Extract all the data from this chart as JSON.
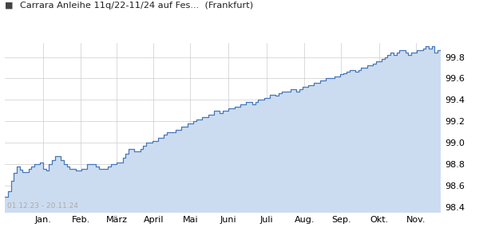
{
  "title": "Carrara Anleihe 11q/22-11/24 auf Fes...  (Frankfurt)",
  "title_square_color": "#333333",
  "date_range": "01.12.23 - 20.11.24",
  "x_labels": [
    "Jan.",
    "Feb.",
    "März",
    "April",
    "Mai",
    "Juni",
    "Juli",
    "Aug.",
    "Sep.",
    "Okt.",
    "Nov."
  ],
  "y_ticks": [
    98.4,
    98.6,
    98.8,
    99.0,
    99.2,
    99.4,
    99.6,
    99.8
  ],
  "y_min": 98.35,
  "y_max": 99.93,
  "line_color": "#4477BB",
  "fill_color": "#CCDCF0",
  "background_color": "#ffffff",
  "plot_bg_color": "#ffffff",
  "grid_color": "#cccccc",
  "series": [
    98.5,
    98.55,
    98.65,
    98.72,
    98.78,
    98.75,
    98.73,
    98.73,
    98.76,
    98.78,
    98.8,
    98.8,
    98.82,
    98.76,
    98.74,
    98.8,
    98.84,
    98.88,
    98.88,
    98.84,
    98.8,
    98.78,
    98.76,
    98.76,
    98.74,
    98.74,
    98.76,
    98.76,
    98.8,
    98.8,
    98.8,
    98.78,
    98.76,
    98.76,
    98.76,
    98.78,
    98.8,
    98.8,
    98.82,
    98.82,
    98.86,
    98.9,
    98.94,
    98.94,
    98.92,
    98.92,
    98.94,
    98.97,
    99.0,
    99.0,
    99.02,
    99.02,
    99.05,
    99.05,
    99.08,
    99.1,
    99.1,
    99.1,
    99.12,
    99.12,
    99.15,
    99.15,
    99.18,
    99.18,
    99.2,
    99.22,
    99.22,
    99.24,
    99.24,
    99.26,
    99.26,
    99.3,
    99.3,
    99.28,
    99.3,
    99.3,
    99.32,
    99.32,
    99.34,
    99.34,
    99.36,
    99.36,
    99.38,
    99.38,
    99.36,
    99.38,
    99.4,
    99.4,
    99.42,
    99.42,
    99.45,
    99.45,
    99.44,
    99.46,
    99.48,
    99.48,
    99.48,
    99.5,
    99.5,
    99.48,
    99.5,
    99.52,
    99.52,
    99.54,
    99.54,
    99.56,
    99.56,
    99.58,
    99.58,
    99.6,
    99.6,
    99.6,
    99.62,
    99.62,
    99.64,
    99.65,
    99.66,
    99.68,
    99.68,
    99.66,
    99.68,
    99.7,
    99.7,
    99.72,
    99.72,
    99.74,
    99.76,
    99.76,
    99.78,
    99.8,
    99.82,
    99.84,
    99.82,
    99.84,
    99.86,
    99.86,
    99.84,
    99.82,
    99.84,
    99.84,
    99.86,
    99.86,
    99.88,
    99.9,
    99.88,
    99.9,
    99.84,
    99.86,
    99.88
  ],
  "x_tick_positions": [
    31,
    62,
    91,
    121,
    151,
    182,
    213,
    244,
    274,
    305,
    335
  ],
  "total_days": 355
}
